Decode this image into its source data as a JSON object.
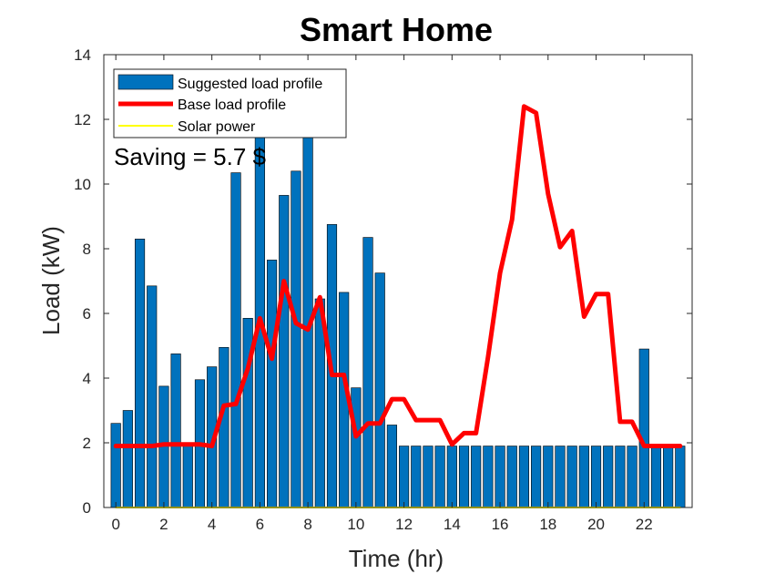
{
  "chart_data": {
    "type": "bar",
    "title": "Smart Home",
    "xlabel": "Time (hr)",
    "ylabel": "Load (kW)",
    "xlim": [
      -0.5,
      24
    ],
    "ylim": [
      0,
      14
    ],
    "x_ticks": [
      0,
      2,
      4,
      6,
      8,
      10,
      12,
      14,
      16,
      18,
      20,
      22
    ],
    "y_ticks": [
      0,
      2,
      4,
      6,
      8,
      10,
      12,
      14
    ],
    "grid": false,
    "legend_position": "top-left",
    "annotation": "Saving = 5.7 $",
    "series": [
      {
        "name": "Suggested load profile",
        "kind": "bar",
        "color": "#0072BD",
        "x": [
          0,
          0.5,
          1,
          1.5,
          2,
          2.5,
          3,
          3.5,
          4,
          4.5,
          5,
          5.5,
          6,
          6.5,
          7,
          7.5,
          8,
          8.5,
          9,
          9.5,
          10,
          10.5,
          11,
          11.5,
          12,
          12.5,
          13,
          13.5,
          14,
          14.5,
          15,
          15.5,
          16,
          16.5,
          17,
          17.5,
          18,
          18.5,
          19,
          19.5,
          20,
          20.5,
          21,
          21.5,
          22,
          22.5,
          23,
          23.5
        ],
        "values": [
          2.6,
          3.0,
          8.3,
          6.85,
          3.75,
          4.75,
          1.9,
          3.95,
          4.35,
          4.95,
          10.35,
          5.85,
          12.0,
          7.65,
          9.65,
          10.4,
          11.5,
          6.45,
          8.75,
          6.65,
          3.7,
          8.35,
          7.25,
          2.55,
          1.9,
          1.9,
          1.9,
          1.9,
          1.9,
          1.9,
          1.9,
          1.9,
          1.9,
          1.9,
          1.9,
          1.9,
          1.9,
          1.9,
          1.9,
          1.9,
          1.9,
          1.9,
          1.9,
          1.9,
          4.9,
          1.9,
          1.9,
          1.9
        ]
      },
      {
        "name": "Base load profile",
        "kind": "line",
        "color": "#FF0000",
        "x": [
          0,
          0.5,
          1,
          1.5,
          2,
          2.5,
          3,
          3.5,
          4,
          4.5,
          5,
          5.5,
          6,
          6.5,
          7,
          7.5,
          8,
          8.5,
          9,
          9.5,
          10,
          10.5,
          11,
          11.5,
          12,
          12.5,
          13,
          13.5,
          14,
          14.5,
          15,
          15.5,
          16,
          16.5,
          17,
          17.5,
          18,
          18.5,
          19,
          19.5,
          20,
          20.5,
          21,
          21.5,
          22,
          22.5,
          23,
          23.5
        ],
        "values": [
          1.9,
          1.9,
          1.9,
          1.9,
          1.95,
          1.95,
          1.95,
          1.95,
          1.9,
          3.15,
          3.2,
          4.3,
          5.85,
          4.6,
          7.0,
          5.7,
          5.5,
          6.5,
          4.1,
          4.1,
          2.2,
          2.6,
          2.6,
          3.35,
          3.35,
          2.7,
          2.7,
          2.7,
          1.95,
          2.3,
          2.3,
          4.65,
          7.25,
          8.9,
          12.4,
          12.2,
          9.7,
          8.05,
          8.55,
          5.9,
          6.6,
          6.6,
          2.65,
          2.65,
          1.9,
          1.9,
          1.9,
          1.9
        ]
      },
      {
        "name": "Solar power",
        "kind": "line",
        "color": "#FFFF00",
        "x": [
          0,
          23.5
        ],
        "values": [
          0,
          0
        ]
      }
    ]
  }
}
